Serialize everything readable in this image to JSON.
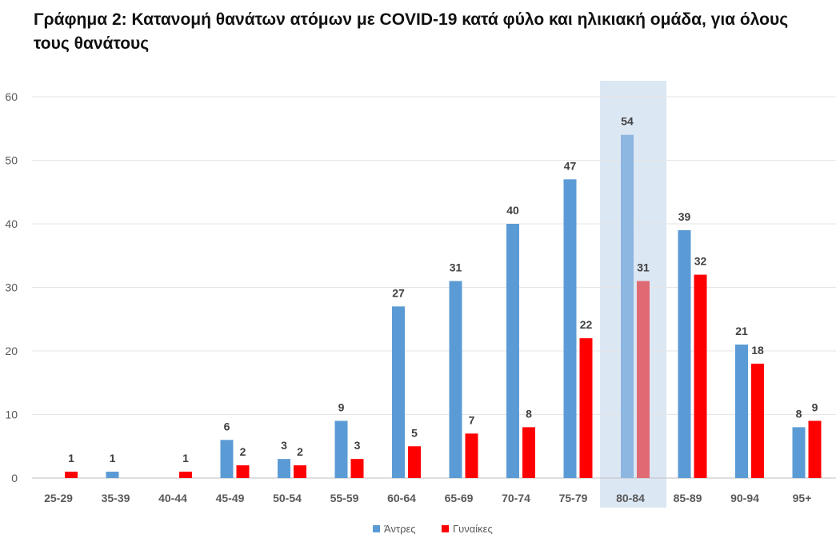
{
  "chart_data": {
    "type": "bar",
    "title": "Γράφημα 2: Κατανομή θανάτων ατόμων με COVID-19 κατά φύλο και ηλικιακή ομάδα, για όλους τους θανάτους",
    "xlabel": "",
    "ylabel": "",
    "ylim": [
      0,
      60
    ],
    "yticks": [
      0,
      10,
      20,
      30,
      40,
      50,
      60
    ],
    "grid": true,
    "legend_position": "bottom",
    "highlighted_category": "80-84",
    "categories": [
      "25-29",
      "35-39",
      "40-44",
      "45-49",
      "50-54",
      "55-59",
      "60-64",
      "65-69",
      "70-74",
      "75-79",
      "80-84",
      "85-89",
      "90-94",
      "95+"
    ],
    "series": [
      {
        "name": "Άντρες",
        "color": "#5B9BD5",
        "values": [
          null,
          1,
          null,
          6,
          3,
          9,
          27,
          31,
          40,
          47,
          54,
          39,
          21,
          8
        ]
      },
      {
        "name": "Γυναίκες",
        "color": "#FF0000",
        "values": [
          1,
          null,
          1,
          2,
          2,
          3,
          5,
          7,
          8,
          22,
          31,
          32,
          18,
          9
        ]
      }
    ]
  }
}
